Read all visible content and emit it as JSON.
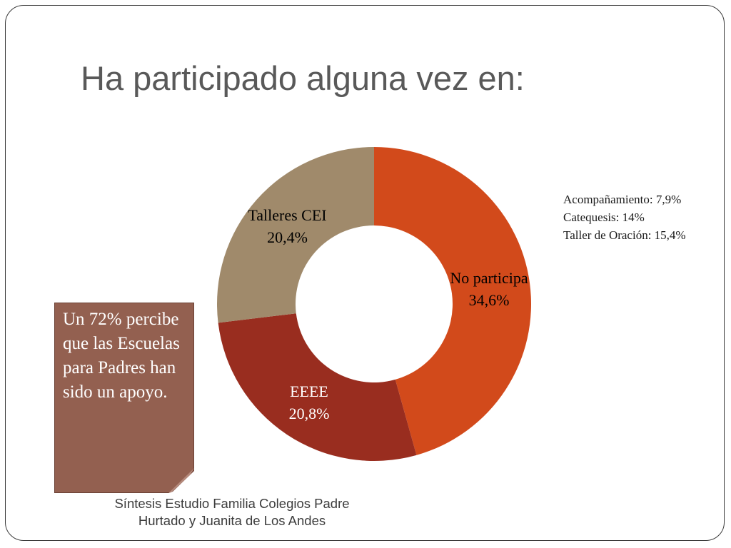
{
  "title": "Ha participado alguna vez en:",
  "chart_data": {
    "type": "pie",
    "donut": true,
    "slices": [
      {
        "label": "No participa",
        "value": 34.6,
        "value_text": "34,6%",
        "color": "#d24a1b",
        "label_color": "#1a1a1a"
      },
      {
        "label": "EEEE",
        "value": 20.8,
        "value_text": "20,8%",
        "color": "#992d1f",
        "label_color": "#ffffff"
      },
      {
        "label": "Talleres CEI",
        "value": 20.4,
        "value_text": "20,4%",
        "color": "#a08a6b",
        "label_color": "#1a1a1a"
      }
    ]
  },
  "breakdown": [
    {
      "label": "Acompañamiento:",
      "value": "7,9%"
    },
    {
      "label": "Catequesis:",
      "value": "14%"
    },
    {
      "label": "Taller de Oración:",
      "value": "15,4%"
    }
  ],
  "note": {
    "text": "Un 72% percibe que las Escuelas para Padres han sido un apoyo.",
    "color": "#936050"
  },
  "source": {
    "line1": "Síntesis  Estudio Familia Colegios Padre",
    "line2": "Hurtado y Juanita de Los Andes"
  }
}
